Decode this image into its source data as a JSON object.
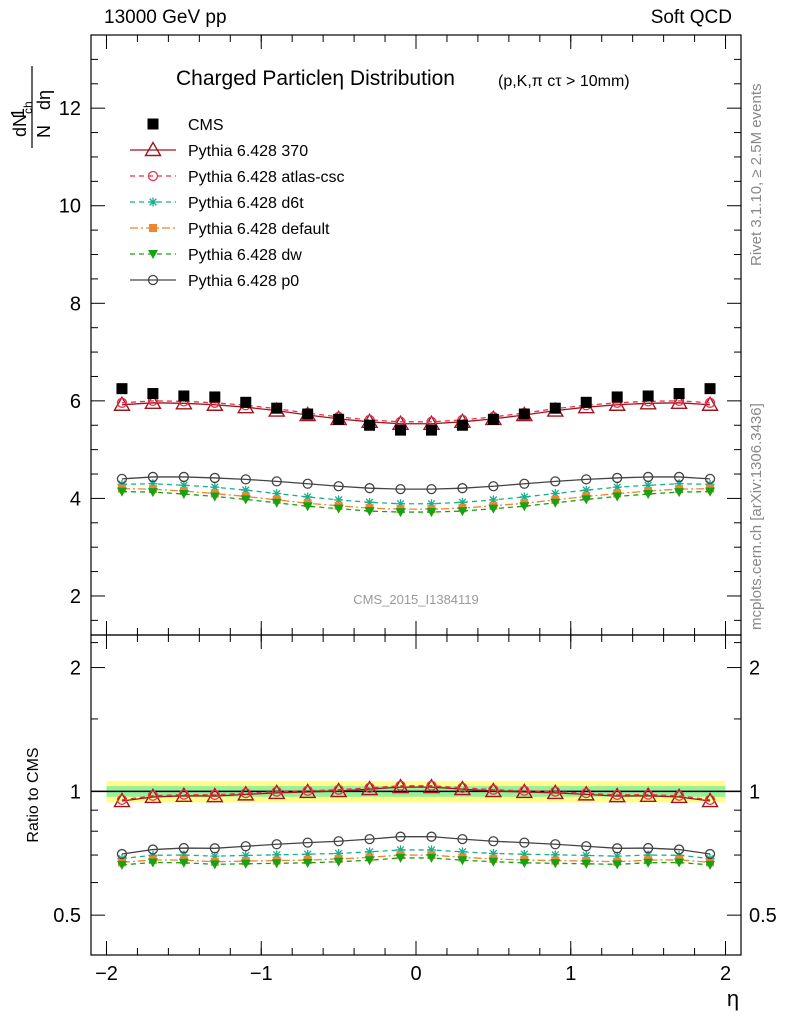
{
  "header": {
    "left": "13000 GeV pp",
    "right": "Soft QCD"
  },
  "side": {
    "rivet": "Rivet 3.1.10, ≥ 2.5M events",
    "mcplots": "mcplots.cern.ch [arXiv:1306.3436]"
  },
  "chart_data": {
    "type": "line",
    "title": "Charged Particleη Distribution",
    "title_suffix": "(p,K,π cτ > 10mm)",
    "watermark": "CMS_2015_I1384119",
    "xlabel": "η",
    "ylabel": "1/N dN_ch/dη",
    "ylabel_parts": {
      "one": "1",
      "n": "N",
      "dn": "dN",
      "ch": "ch",
      "deta": "dη"
    },
    "ratio_ylabel": "Ratio to CMS",
    "xlim": [
      -2.1,
      2.1
    ],
    "ylim": [
      1.2,
      13.5
    ],
    "ratio_ylim": [
      0.4,
      2.4
    ],
    "x_ticks": [
      "−2",
      "−1",
      "0",
      "1",
      "2"
    ],
    "x_tick_values": [
      -2,
      -1,
      0,
      1,
      2
    ],
    "y_ticks": [
      "2",
      "4",
      "6",
      "8",
      "10",
      "12"
    ],
    "y_tick_values": [
      2,
      4,
      6,
      8,
      10,
      12
    ],
    "ratio_ticks": [
      "0.5",
      "1",
      "2"
    ],
    "ratio_tick_values": [
      0.5,
      1,
      2
    ],
    "x": [
      -1.9,
      -1.7,
      -1.5,
      -1.3,
      -1.1,
      -0.9,
      -0.7,
      -0.5,
      -0.3,
      -0.1,
      0.1,
      0.3,
      0.5,
      0.7,
      0.9,
      1.1,
      1.3,
      1.5,
      1.7,
      1.9
    ],
    "data": {
      "name": "CMS",
      "values": [
        6.25,
        6.15,
        6.1,
        6.08,
        5.97,
        5.85,
        5.73,
        5.62,
        5.5,
        5.4,
        5.4,
        5.5,
        5.62,
        5.73,
        5.85,
        5.97,
        6.08,
        6.1,
        6.15,
        6.25
      ]
    },
    "band_inner": 0.03,
    "band_outer": 0.06,
    "series": [
      {
        "name": "Pythia 6.428 370",
        "color": "#a0141e",
        "marker": "triangle-open",
        "dash": "solid",
        "values": [
          5.92,
          5.96,
          5.95,
          5.92,
          5.87,
          5.8,
          5.71,
          5.63,
          5.57,
          5.53,
          5.53,
          5.57,
          5.63,
          5.71,
          5.8,
          5.87,
          5.92,
          5.95,
          5.96,
          5.92
        ]
      },
      {
        "name": "Pythia 6.428 atlas-csc",
        "color": "#e8304a",
        "marker": "circle-open",
        "dash": "dashed",
        "values": [
          5.96,
          6.0,
          5.99,
          5.96,
          5.91,
          5.84,
          5.75,
          5.67,
          5.61,
          5.57,
          5.57,
          5.61,
          5.67,
          5.75,
          5.84,
          5.91,
          5.96,
          5.99,
          6.0,
          5.96
        ]
      },
      {
        "name": "Pythia 6.428 d6t",
        "color": "#1aaf8c",
        "marker": "asterisk",
        "dash": "dashed",
        "values": [
          4.29,
          4.3,
          4.27,
          4.23,
          4.17,
          4.1,
          4.03,
          3.97,
          3.92,
          3.89,
          3.89,
          3.92,
          3.97,
          4.03,
          4.1,
          4.17,
          4.23,
          4.27,
          4.3,
          4.29
        ]
      },
      {
        "name": "Pythia 6.428 default",
        "color": "#f0852d",
        "marker": "square",
        "dash": "dashdot",
        "values": [
          4.2,
          4.19,
          4.15,
          4.1,
          4.04,
          3.97,
          3.9,
          3.85,
          3.8,
          3.78,
          3.78,
          3.8,
          3.85,
          3.9,
          3.97,
          4.04,
          4.1,
          4.15,
          4.19,
          4.2
        ]
      },
      {
        "name": "Pythia 6.428 dw",
        "color": "#14a314",
        "marker": "triangle-down",
        "dash": "dashed",
        "values": [
          4.14,
          4.13,
          4.09,
          4.04,
          3.98,
          3.91,
          3.84,
          3.79,
          3.74,
          3.72,
          3.72,
          3.74,
          3.79,
          3.84,
          3.91,
          3.98,
          4.04,
          4.09,
          4.13,
          4.14
        ]
      },
      {
        "name": "Pythia 6.428 p0",
        "color": "#444444",
        "marker": "circle-open",
        "dash": "solid",
        "values": [
          4.4,
          4.44,
          4.44,
          4.42,
          4.39,
          4.35,
          4.3,
          4.25,
          4.21,
          4.19,
          4.19,
          4.21,
          4.25,
          4.3,
          4.35,
          4.39,
          4.42,
          4.44,
          4.44,
          4.4
        ]
      }
    ],
    "legend_placement": "top-left"
  }
}
